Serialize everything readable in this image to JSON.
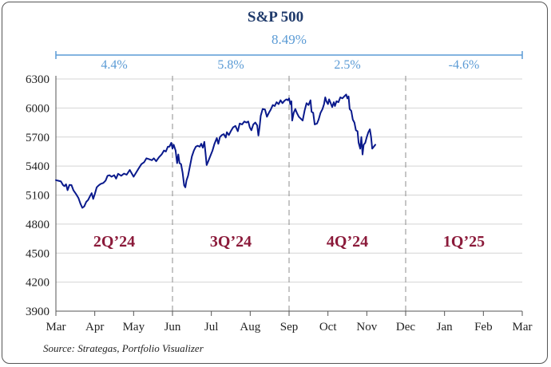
{
  "chart_data": {
    "type": "line",
    "title": "S&P 500",
    "total_return": "8.49%",
    "source": "Source: Strategas, Portfolio Visualizer",
    "ylim": [
      3900,
      6300
    ],
    "yticks": [
      3900,
      4200,
      4500,
      4800,
      5100,
      5400,
      5700,
      6000,
      6300
    ],
    "x_tick_labels": [
      "Mar",
      "Apr",
      "May",
      "Jun",
      "Jul",
      "Aug",
      "Sep",
      "Oct",
      "Nov",
      "Dec",
      "Jan",
      "Feb",
      "Mar"
    ],
    "grid": "horizontal",
    "line_color": "#0a1a8c",
    "quarters": [
      {
        "label": "2Q’24",
        "return": "4.4%"
      },
      {
        "label": "3Q’24",
        "return": "5.8%"
      },
      {
        "label": "4Q’24",
        "return": "2.5%"
      },
      {
        "label": "1Q’25",
        "return": "-4.6%"
      }
    ],
    "series": [
      {
        "values": [
          [
            0.0,
            5254
          ],
          [
            0.07,
            5248
          ],
          [
            0.13,
            5241
          ],
          [
            0.18,
            5205
          ],
          [
            0.22,
            5192
          ],
          [
            0.26,
            5211
          ],
          [
            0.3,
            5150
          ],
          [
            0.35,
            5205
          ],
          [
            0.4,
            5203
          ],
          [
            0.45,
            5150
          ],
          [
            0.52,
            5110
          ],
          [
            0.58,
            5070
          ],
          [
            0.63,
            5012
          ],
          [
            0.68,
            4968
          ],
          [
            0.73,
            4983
          ],
          [
            0.78,
            5030
          ],
          [
            0.83,
            5050
          ],
          [
            0.88,
            5090
          ],
          [
            0.92,
            5120
          ],
          [
            0.96,
            5060
          ],
          [
            1.0,
            5110
          ],
          [
            1.05,
            5180
          ],
          [
            1.1,
            5200
          ],
          [
            1.15,
            5215
          ],
          [
            1.22,
            5225
          ],
          [
            1.28,
            5250
          ],
          [
            1.33,
            5300
          ],
          [
            1.38,
            5305
          ],
          [
            1.43,
            5290
          ],
          [
            1.5,
            5305
          ],
          [
            1.55,
            5270
          ],
          [
            1.6,
            5320
          ],
          [
            1.68,
            5300
          ],
          [
            1.75,
            5322
          ],
          [
            1.82,
            5310
          ],
          [
            1.9,
            5360
          ],
          [
            2.0,
            5290
          ],
          [
            2.06,
            5330
          ],
          [
            2.12,
            5370
          ],
          [
            2.2,
            5420
          ],
          [
            2.27,
            5440
          ],
          [
            2.33,
            5480
          ],
          [
            2.4,
            5470
          ],
          [
            2.47,
            5460
          ],
          [
            2.52,
            5480
          ],
          [
            2.58,
            5450
          ],
          [
            2.65,
            5490
          ],
          [
            2.72,
            5520
          ],
          [
            2.78,
            5560
          ],
          [
            2.83,
            5550
          ],
          [
            2.88,
            5600
          ],
          [
            2.92,
            5600
          ],
          [
            2.97,
            5640
          ],
          [
            3.0,
            5580
          ],
          [
            3.03,
            5620
          ],
          [
            3.08,
            5560
          ],
          [
            3.12,
            5430
          ],
          [
            3.15,
            5520
          ],
          [
            3.18,
            5430
          ],
          [
            3.22,
            5420
          ],
          [
            3.26,
            5330
          ],
          [
            3.3,
            5200
          ],
          [
            3.33,
            5180
          ],
          [
            3.36,
            5250
          ],
          [
            3.4,
            5300
          ],
          [
            3.45,
            5400
          ],
          [
            3.5,
            5500
          ],
          [
            3.55,
            5560
          ],
          [
            3.6,
            5600
          ],
          [
            3.65,
            5610
          ],
          [
            3.7,
            5600
          ],
          [
            3.74,
            5630
          ],
          [
            3.78,
            5590
          ],
          [
            3.82,
            5650
          ],
          [
            3.85,
            5530
          ],
          [
            3.88,
            5410
          ],
          [
            3.92,
            5450
          ],
          [
            3.97,
            5500
          ],
          [
            4.03,
            5560
          ],
          [
            4.08,
            5630
          ],
          [
            4.14,
            5690
          ],
          [
            4.18,
            5630
          ],
          [
            4.22,
            5700
          ],
          [
            4.27,
            5720
          ],
          [
            4.32,
            5730
          ],
          [
            4.37,
            5695
          ],
          [
            4.4,
            5750
          ],
          [
            4.45,
            5720
          ],
          [
            4.5,
            5760
          ],
          [
            4.56,
            5800
          ],
          [
            4.62,
            5815
          ],
          [
            4.68,
            5760
          ],
          [
            4.73,
            5840
          ],
          [
            4.79,
            5830
          ],
          [
            4.85,
            5860
          ],
          [
            4.9,
            5850
          ],
          [
            4.95,
            5860
          ],
          [
            4.99,
            5800
          ],
          [
            5.03,
            5770
          ],
          [
            5.08,
            5830
          ],
          [
            5.13,
            5850
          ],
          [
            5.18,
            5820
          ],
          [
            5.21,
            5715
          ],
          [
            5.24,
            5800
          ],
          [
            5.27,
            5920
          ],
          [
            5.32,
            5990
          ],
          [
            5.38,
            5985
          ],
          [
            5.43,
            5910
          ],
          [
            5.48,
            5950
          ],
          [
            5.53,
            5985
          ],
          [
            5.58,
            6030
          ],
          [
            5.63,
            6020
          ],
          [
            5.68,
            6060
          ],
          [
            5.73,
            6040
          ],
          [
            5.78,
            6080
          ],
          [
            5.83,
            6050
          ],
          [
            5.88,
            6075
          ],
          [
            5.93,
            6090
          ],
          [
            5.97,
            6080
          ],
          [
            6.0,
            6100
          ],
          [
            6.03,
            6040
          ],
          [
            6.06,
            6070
          ],
          [
            6.08,
            5870
          ],
          [
            6.12,
            5950
          ],
          [
            6.16,
            5990
          ],
          [
            6.2,
            5950
          ],
          [
            6.25,
            5910
          ],
          [
            6.3,
            5890
          ],
          [
            6.35,
            5870
          ],
          [
            6.4,
            5975
          ],
          [
            6.45,
            6050
          ],
          [
            6.5,
            6030
          ],
          [
            6.55,
            6080
          ],
          [
            6.58,
            5960
          ],
          [
            6.62,
            5950
          ],
          [
            6.66,
            5830
          ],
          [
            6.72,
            5840
          ],
          [
            6.76,
            5880
          ],
          [
            6.81,
            5950
          ],
          [
            6.86,
            5990
          ],
          [
            6.9,
            6040
          ],
          [
            6.93,
            6110
          ],
          [
            6.96,
            6070
          ],
          [
            7.0,
            6040
          ],
          [
            7.03,
            6090
          ],
          [
            7.07,
            6050
          ],
          [
            7.11,
            6010
          ],
          [
            7.15,
            6060
          ],
          [
            7.18,
            6020
          ],
          [
            7.22,
            6070
          ],
          [
            7.27,
            6060
          ],
          [
            7.32,
            6110
          ],
          [
            7.37,
            6100
          ],
          [
            7.42,
            6120
          ],
          [
            7.47,
            6140
          ],
          [
            7.5,
            6100
          ],
          [
            7.53,
            6120
          ],
          [
            7.56,
            5990
          ],
          [
            7.6,
            5970
          ],
          [
            7.64,
            5880
          ],
          [
            7.68,
            5850
          ],
          [
            7.72,
            5770
          ],
          [
            7.76,
            5760
          ],
          [
            7.79,
            5640
          ],
          [
            7.83,
            5580
          ],
          [
            7.86,
            5700
          ],
          [
            7.89,
            5520
          ],
          [
            7.92,
            5620
          ],
          [
            7.96,
            5640
          ],
          [
            8.0,
            5700
          ],
          [
            8.04,
            5750
          ],
          [
            8.08,
            5780
          ],
          [
            8.11,
            5700
          ],
          [
            8.14,
            5580
          ],
          [
            8.18,
            5600
          ],
          [
            8.22,
            5620
          ]
        ]
      }
    ]
  }
}
